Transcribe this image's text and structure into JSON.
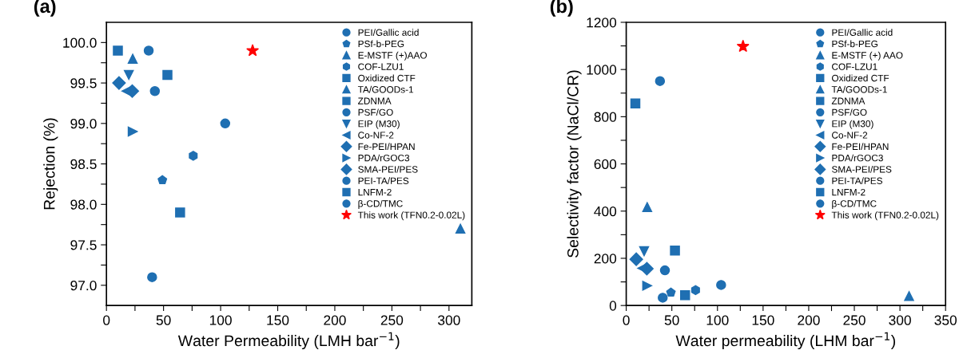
{
  "chart_data": [
    {
      "type": "scatter",
      "title": "(a)",
      "xlabel": "Water Permeability (LMH bar$^{−1}$)",
      "ylabel": "Rejection (%)",
      "xlim": [
        0,
        320
      ],
      "xticks": [
        0,
        {
          "value": 25,
          "label": null
        },
        50,
        {
          "value": 75,
          "label": null
        },
        100,
        {
          "value": 125,
          "label": null
        },
        150,
        {
          "value": 175,
          "label": null
        },
        200,
        {
          "value": 225,
          "label": null
        },
        250,
        {
          "value": 275,
          "label": null
        },
        300
      ],
      "ylim": [
        96.75,
        100.25
      ],
      "yticks": [
        {
          "value": 97.0,
          "label": "97.0"
        },
        {
          "value": 97.25,
          "label": null
        },
        97.5,
        {
          "value": 97.75,
          "label": null
        },
        {
          "value": 98.0,
          "label": "98.0"
        },
        {
          "value": 98.25,
          "label": null
        },
        98.5,
        {
          "value": 98.75,
          "label": null
        },
        {
          "value": 99.0,
          "label": "99.0"
        },
        {
          "value": 99.25,
          "label": null
        },
        99.5,
        {
          "value": 99.75,
          "label": null
        },
        {
          "value": 100.0,
          "label": "100.0"
        }
      ],
      "grid": false,
      "legend": "top right",
      "series": [
        {
          "name": "PEI/Gallic acid",
          "color": "#1f6fb2",
          "marker": "circle",
          "x": [
            40
          ],
          "values": [
            97.1
          ]
        },
        {
          "name": "PSf-b-PEG",
          "color": "#1f6fb2",
          "x": [
            49
          ],
          "values": [
            98.3
          ]
        },
        {
          "name": "E-MSTF (+)AAO",
          "color": "#1f6fb2",
          "marker": "triangle",
          "x": [
            310
          ],
          "values": [
            97.7
          ]
        },
        {
          "name": "COF-LZU1",
          "color": "#1f6fb2",
          "x": [
            76
          ],
          "values": [
            98.6
          ]
        },
        {
          "name": "Oxidized CTF",
          "color": "#1f6fb2",
          "marker": "square",
          "x": [
            64.5
          ],
          "values": [
            97.9
          ]
        },
        {
          "name": "TA/GOODs-1",
          "color": "#1f6fb2",
          "marker": "triangle",
          "x": [
            23
          ],
          "values": [
            99.8
          ]
        },
        {
          "name": "ZDNMA",
          "color": "#1f6fb2",
          "marker": "square",
          "x": [
            10
          ],
          "values": [
            99.9
          ]
        },
        {
          "name": "PSF/GO",
          "color": "#1f6fb2",
          "marker": "circle",
          "x": [
            37
          ],
          "values": [
            99.9
          ]
        },
        {
          "name": "EIP (M30)",
          "color": "#1f6fb2",
          "x": [
            19.6
          ],
          "values": [
            99.6
          ]
        },
        {
          "name": "Co-NF-2",
          "color": "#1f6fb2",
          "x": [
            17.5
          ],
          "values": [
            99.4
          ]
        },
        {
          "name": "Fe-PEI/HPAN",
          "color": "#1f6fb2",
          "marker": "diamond",
          "x": [
            11
          ],
          "values": [
            99.5
          ]
        },
        {
          "name": "PDA/rGOC3",
          "color": "#1f6fb2",
          "x": [
            23
          ],
          "values": [
            98.9
          ]
        },
        {
          "name": "SMA-PEI/PES",
          "color": "#1f6fb2",
          "marker": "diamond",
          "x": [
            22.6
          ],
          "values": [
            99.4
          ]
        },
        {
          "name": "PEI-TA/PES",
          "color": "#1f6fb2",
          "marker": "circle",
          "x": [
            42.4
          ],
          "values": [
            99.4
          ]
        },
        {
          "name": "LNFM-2",
          "color": "#1f6fb2",
          "marker": "square",
          "x": [
            53.4
          ],
          "values": [
            99.6
          ]
        },
        {
          "name": "β-CD/TMC",
          "color": "#1f6fb2",
          "marker": "circle",
          "x": [
            104
          ],
          "values": [
            99.0
          ]
        },
        {
          "name": "This work (TFN0.2-0.02L)",
          "color": "#ff0000",
          "marker": "star",
          "x": [
            128
          ],
          "values": [
            99.9
          ]
        }
      ]
    },
    {
      "type": "scatter",
      "title": "(b)",
      "xlabel": "Water permeability (LHM bar$^{−1}$)",
      "ylabel": "Selectivity factor (NaCl/CR)",
      "xlim": [
        0,
        350
      ],
      "xticks": [
        0,
        {
          "value": 25,
          "label": null
        },
        50,
        {
          "value": 75,
          "label": null
        },
        100,
        {
          "value": 125,
          "label": null
        },
        150,
        {
          "value": 175,
          "label": null
        },
        200,
        {
          "value": 225,
          "label": null
        },
        250,
        {
          "value": 275,
          "label": null
        },
        300,
        {
          "value": 325,
          "label": null
        },
        350
      ],
      "ylim": [
        0,
        1200
      ],
      "yticks": [
        0,
        {
          "value": 100,
          "label": null
        },
        200,
        {
          "value": 300,
          "label": null
        },
        400,
        {
          "value": 500,
          "label": null
        },
        600,
        {
          "value": 700,
          "label": null
        },
        800,
        {
          "value": 900,
          "label": null
        },
        1000,
        {
          "value": 1100,
          "label": null
        },
        1200
      ],
      "grid": false,
      "legend": "top right",
      "series": [
        {
          "name": "PEI/Gallic acid",
          "color": "#1f6fb2",
          "marker": "circle",
          "x": [
            40
          ],
          "values": [
            33
          ]
        },
        {
          "name": "PSf-b-PEG",
          "color": "#1f6fb2",
          "x": [
            49
          ],
          "values": [
            55
          ]
        },
        {
          "name": "E-MSTF (+) AAO",
          "color": "#1f6fb2",
          "marker": "triangle",
          "x": [
            310
          ],
          "values": [
            40
          ]
        },
        {
          "name": "COF-LZU1",
          "color": "#1f6fb2",
          "x": [
            76
          ],
          "values": [
            65
          ]
        },
        {
          "name": "Oxidized CTF",
          "color": "#1f6fb2",
          "marker": "square",
          "x": [
            64.5
          ],
          "values": [
            44
          ]
        },
        {
          "name": "TA/GOODs-1",
          "color": "#1f6fb2",
          "marker": "triangle",
          "x": [
            23
          ],
          "values": [
            417
          ]
        },
        {
          "name": "ZDNMA",
          "color": "#1f6fb2",
          "marker": "square",
          "x": [
            10
          ],
          "values": [
            856
          ]
        },
        {
          "name": "PSF/GO",
          "color": "#1f6fb2",
          "marker": "circle",
          "x": [
            37
          ],
          "values": [
            951
          ]
        },
        {
          "name": "EIP (M30)",
          "color": "#1f6fb2",
          "x": [
            19.6
          ],
          "values": [
            230
          ]
        },
        {
          "name": "Co-NF-2",
          "color": "#1f6fb2",
          "x": [
            17.5
          ],
          "values": [
            158
          ]
        },
        {
          "name": "Fe-PEI/HPAN",
          "color": "#1f6fb2",
          "marker": "diamond",
          "x": [
            11
          ],
          "values": [
            196
          ]
        },
        {
          "name": "PDA/rGOC3",
          "color": "#1f6fb2",
          "x": [
            23
          ],
          "values": [
            84
          ]
        },
        {
          "name": "SMA-PEI/PES",
          "color": "#1f6fb2",
          "marker": "diamond",
          "x": [
            22.6
          ],
          "values": [
            156
          ]
        },
        {
          "name": "PEI-TA/PES",
          "color": "#1f6fb2",
          "marker": "circle",
          "x": [
            42.4
          ],
          "values": [
            149
          ]
        },
        {
          "name": "LNFM-2",
          "color": "#1f6fb2",
          "marker": "square",
          "x": [
            53.4
          ],
          "values": [
            233
          ]
        },
        {
          "name": "β-CD/TMC",
          "color": "#1f6fb2",
          "marker": "circle",
          "x": [
            104
          ],
          "values": [
            87
          ]
        },
        {
          "name": "This work (TFN0.2-0.02L)",
          "color": "#ff0000",
          "marker": "star",
          "x": [
            128
          ],
          "values": [
            1098
          ]
        }
      ]
    }
  ]
}
